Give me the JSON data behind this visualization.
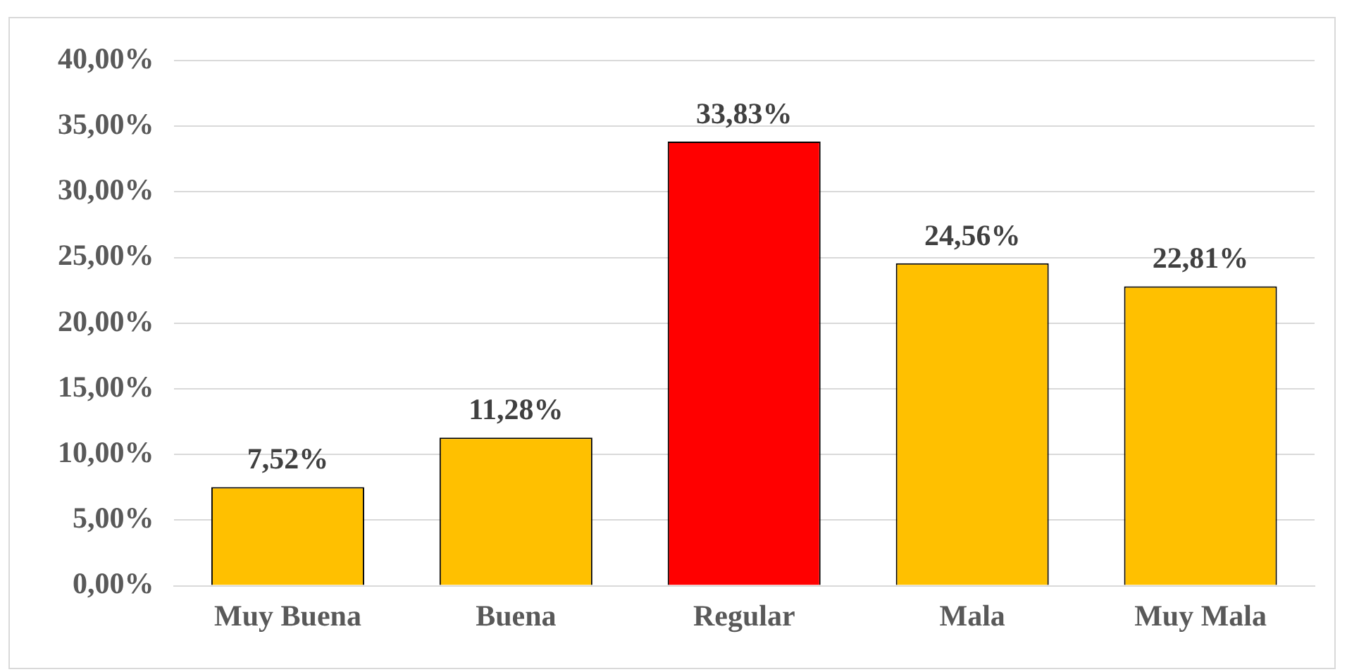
{
  "chart_data": {
    "type": "bar",
    "categories": [
      "Muy Buena",
      "Buena",
      "Regular",
      "Mala",
      "Muy Mala"
    ],
    "values": [
      7.52,
      11.28,
      33.83,
      24.56,
      22.81
    ],
    "colors": [
      "#ffc000",
      "#ffc000",
      "#ff0000",
      "#ffc000",
      "#ffc000"
    ],
    "value_labels": [
      "7,52%",
      "11,28%",
      "33,83%",
      "24,56%",
      "22,81%"
    ],
    "ylim": [
      0,
      40
    ],
    "yticks": [
      {
        "value": 0,
        "label": "0,00%"
      },
      {
        "value": 5,
        "label": "5,00%"
      },
      {
        "value": 10,
        "label": "10,00%"
      },
      {
        "value": 15,
        "label": "15,00%"
      },
      {
        "value": 20,
        "label": "20,00%"
      },
      {
        "value": 25,
        "label": "25,00%"
      },
      {
        "value": 30,
        "label": "30,00%"
      },
      {
        "value": 35,
        "label": "35,00%"
      },
      {
        "value": 40,
        "label": "40,00%"
      }
    ],
    "grid": "y",
    "legend": false
  }
}
